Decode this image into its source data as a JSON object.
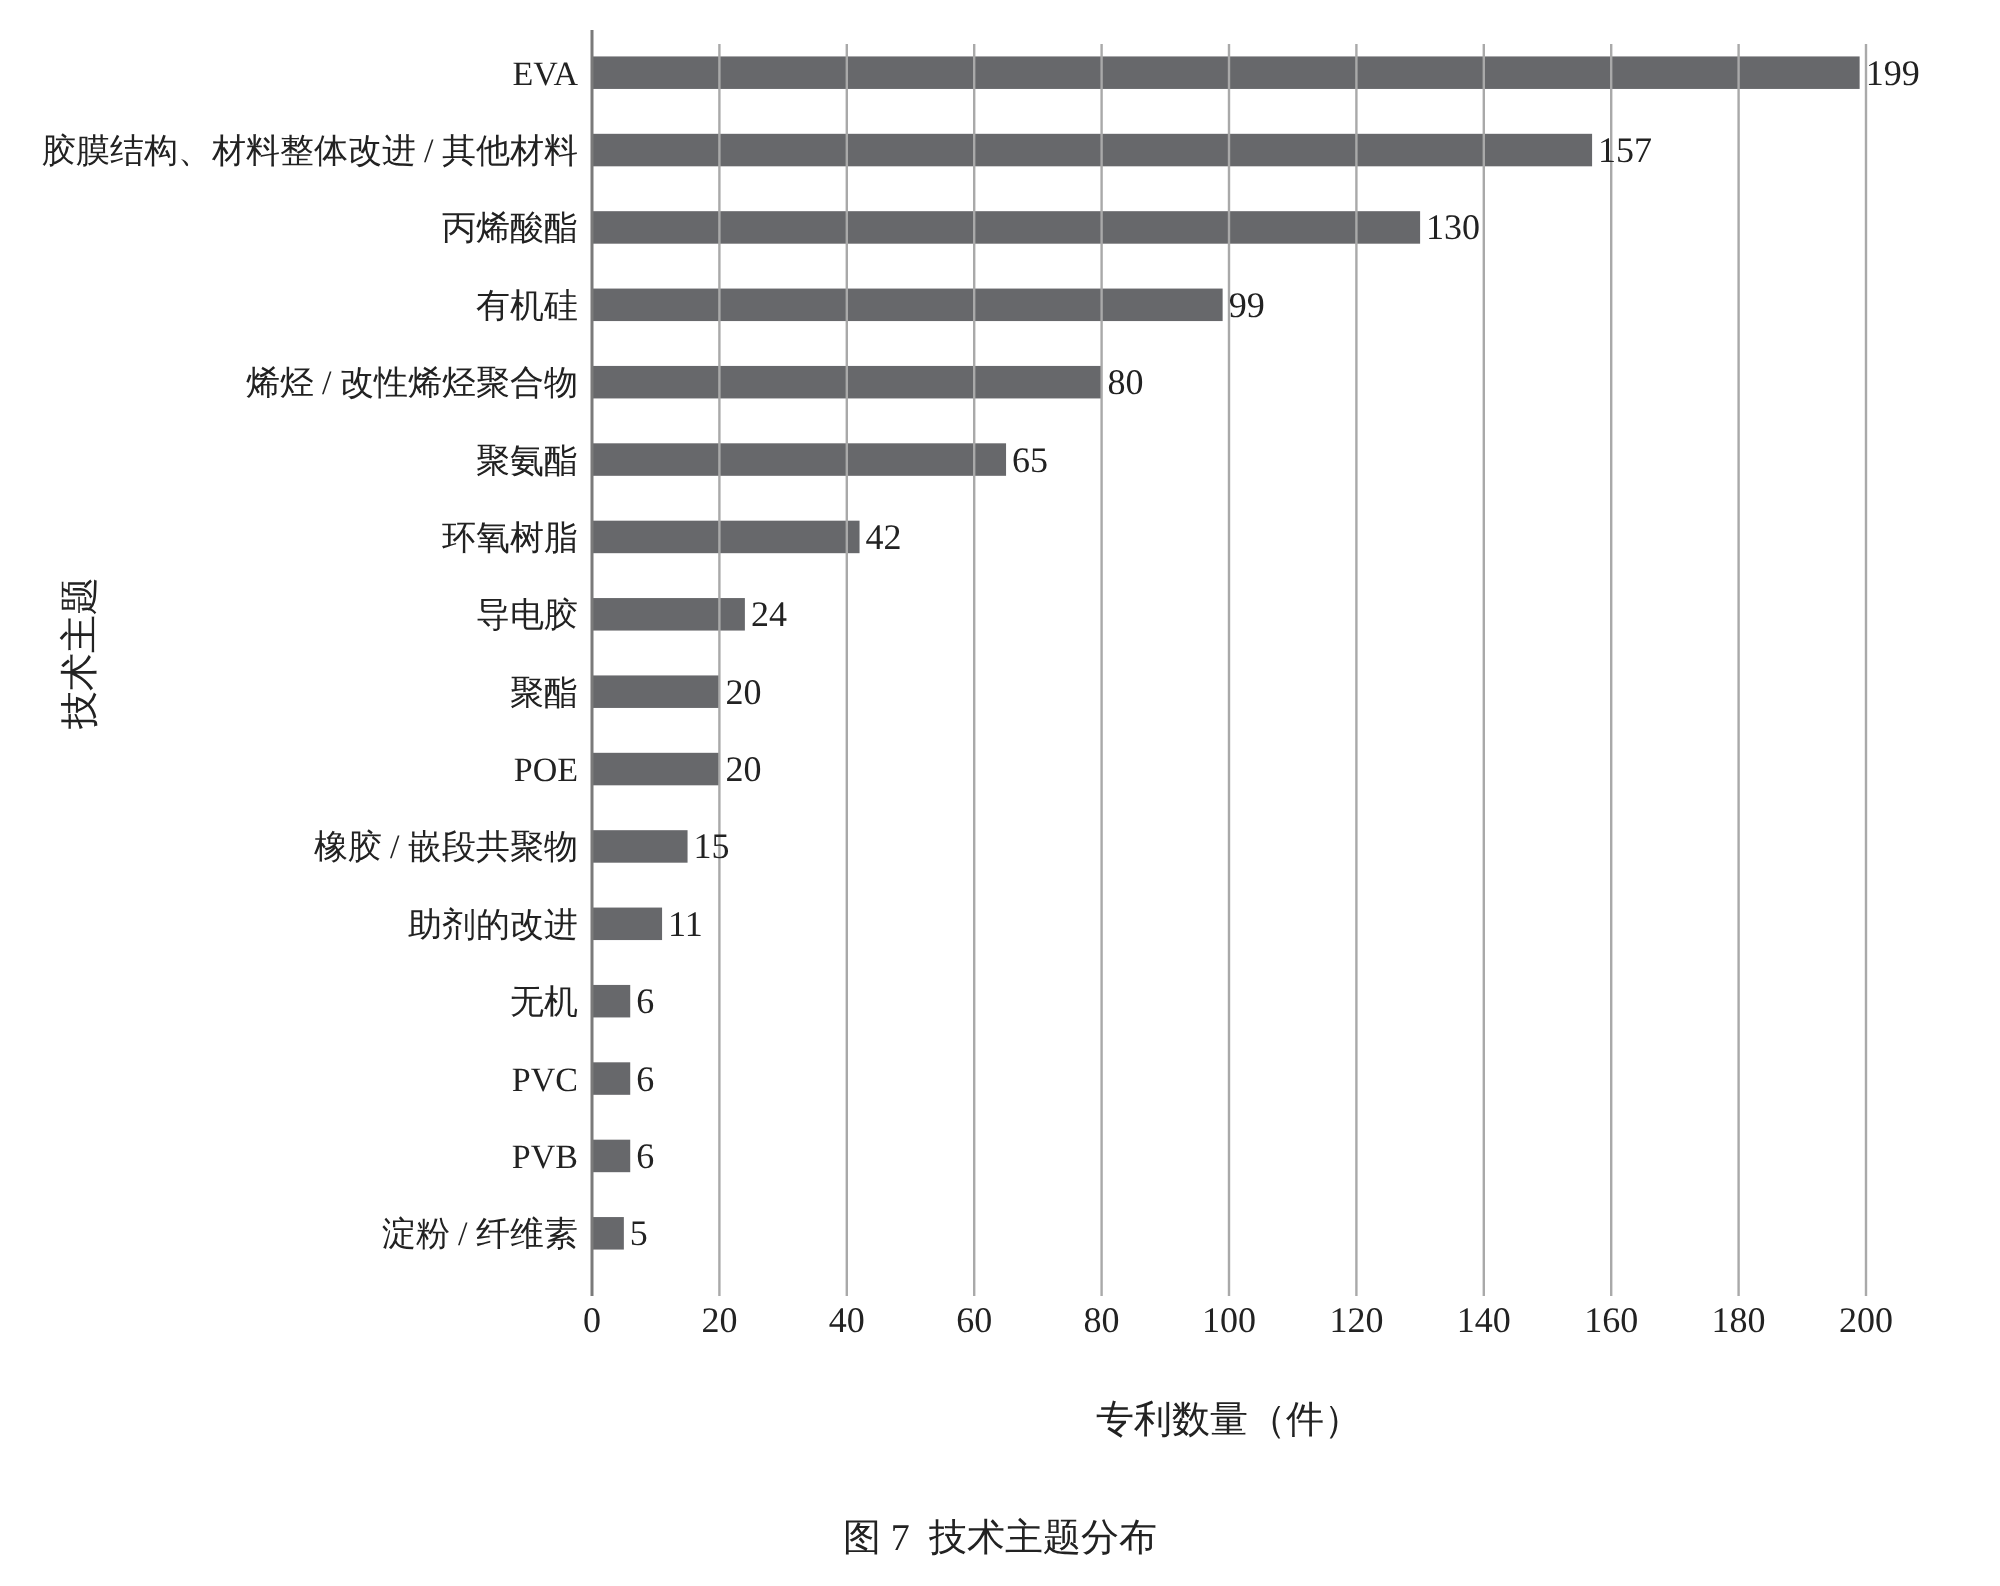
{
  "chart_data": {
    "type": "bar",
    "orientation": "horizontal",
    "title": "图 7  技术主题分布",
    "xlabel": "专利数量（件）",
    "ylabel": "技术主题",
    "categories": [
      "EVA",
      "胶膜结构、材料整体改进 / 其他材料",
      "丙烯酸酯",
      "有机硅",
      "烯烃 / 改性烯烃聚合物",
      "聚氨酯",
      "环氧树脂",
      "导电胶",
      "聚酯",
      "POE",
      "橡胶 / 嵌段共聚物",
      "助剂的改进",
      "无机",
      "PVC",
      "PVB",
      "淀粉 / 纤维素"
    ],
    "values": [
      199,
      157,
      130,
      99,
      80,
      65,
      42,
      24,
      20,
      20,
      15,
      11,
      6,
      6,
      6,
      5
    ],
    "color": "#67686b",
    "xlim": [
      0,
      200
    ],
    "xticks": [
      0,
      20,
      40,
      60,
      80,
      100,
      120,
      140,
      160,
      180,
      200
    ],
    "grid": "x",
    "data_labels": true
  }
}
